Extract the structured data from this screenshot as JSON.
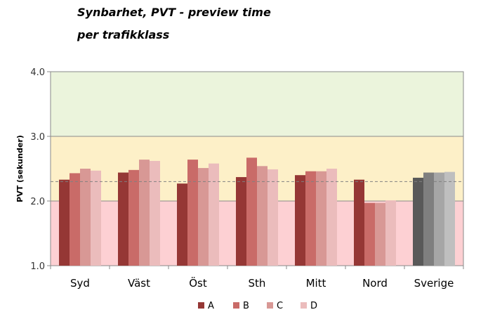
{
  "chart_data": {
    "type": "bar",
    "title": "Synbarhet, PVT - preview time",
    "subtitle": "per trafikklass",
    "ylabel": "PVT (sekunder)",
    "ylim": [
      1.0,
      4.0
    ],
    "yticks": [
      "1.0",
      "2.0",
      "3.0",
      "4.0"
    ],
    "bands": [
      {
        "from": 1.0,
        "to": 2.0,
        "color": "#fdd0d3"
      },
      {
        "from": 2.0,
        "to": 3.0,
        "color": "#fdf0c8"
      },
      {
        "from": 3.0,
        "to": 4.0,
        "color": "#ebf4dc"
      }
    ],
    "reference_line": 2.3,
    "categories": [
      "Syd",
      "Väst",
      "Öst",
      "Sth",
      "Mitt",
      "Nord",
      "Sverige"
    ],
    "series": [
      {
        "name": "A",
        "color": "#953735",
        "values": [
          2.33,
          2.44,
          2.27,
          2.37,
          2.4,
          2.33,
          2.36
        ]
      },
      {
        "name": "B",
        "color": "#c96b68",
        "values": [
          2.43,
          2.48,
          2.64,
          2.67,
          2.46,
          1.97,
          2.44
        ]
      },
      {
        "name": "C",
        "color": "#d89895",
        "values": [
          2.5,
          2.64,
          2.51,
          2.54,
          2.46,
          1.97,
          2.44
        ]
      },
      {
        "name": "D",
        "color": "#ebbcbc",
        "values": [
          2.47,
          2.62,
          2.58,
          2.49,
          2.5,
          2.01,
          2.45
        ]
      }
    ],
    "highlight_category": "Sverige",
    "highlight_colors": [
      "#595959",
      "#7f7f7f",
      "#a6a6a6",
      "#bfbfbf"
    ],
    "legend_position": "bottom"
  }
}
